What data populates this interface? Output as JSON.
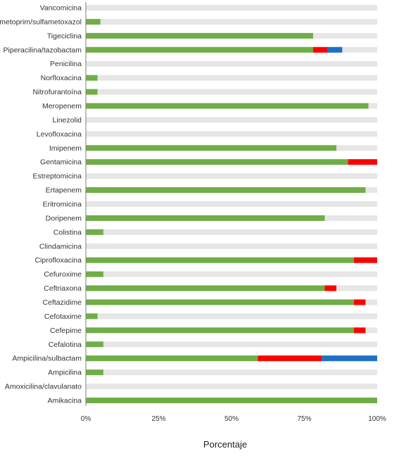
{
  "chart_data": {
    "type": "bar",
    "orientation": "horizontal",
    "stacked": true,
    "xlabel": "Porcentaje",
    "ylabel": "",
    "xlim": [
      0,
      100
    ],
    "x_ticks": [
      "0%",
      "25%",
      "50%",
      "75%",
      "100%"
    ],
    "x_tick_values": [
      0,
      25,
      50,
      75,
      100
    ],
    "grid": false,
    "legend": "none",
    "categories": [
      "Vancomicina",
      "Trimetoprim/sulfametoxazol",
      "Tigeciclina",
      "Piperacilina/tazobactam",
      "Penicilina",
      "Norfloxacina",
      "Nitrofurantoína",
      "Meropenem",
      "Linezolid",
      "Levofloxacina",
      "Imipenem",
      "Gentamicina",
      "Estreptomicina",
      "Ertapenem",
      "Eritromicina",
      "Doripenem",
      "Colistina",
      "Clindamicina",
      "Ciprofloxacina",
      "Cefuroxime",
      "Ceftriaxona",
      "Ceftazidime",
      "Cefotaxime",
      "Cefepime",
      "Cefalotina",
      "Ampicilina/sulbactam",
      "Ampicilina",
      "Amoxicilina/clavulanato",
      "Amikacina"
    ],
    "series": [
      {
        "color": "#70ad47",
        "values": [
          0,
          5,
          78,
          78,
          0,
          4,
          4,
          97,
          0,
          0,
          86,
          90,
          0,
          96,
          0,
          82,
          6,
          0,
          92,
          6,
          82,
          92,
          4,
          92,
          6,
          59,
          6,
          0,
          100
        ]
      },
      {
        "color": "#ff0000",
        "values": [
          0,
          0,
          0,
          5,
          0,
          0,
          0,
          0,
          0,
          0,
          0,
          10,
          0,
          0,
          0,
          0,
          0,
          0,
          8,
          0,
          4,
          4,
          0,
          4,
          0,
          22,
          0,
          0,
          0
        ]
      },
      {
        "color": "#1f6fc5",
        "values": [
          0,
          0,
          0,
          5,
          0,
          0,
          0,
          0,
          0,
          0,
          0,
          0,
          0,
          0,
          0,
          0,
          0,
          0,
          0,
          0,
          0,
          0,
          0,
          0,
          0,
          19,
          0,
          0,
          0
        ]
      }
    ],
    "background_bar_color": "#e6e6e6"
  }
}
